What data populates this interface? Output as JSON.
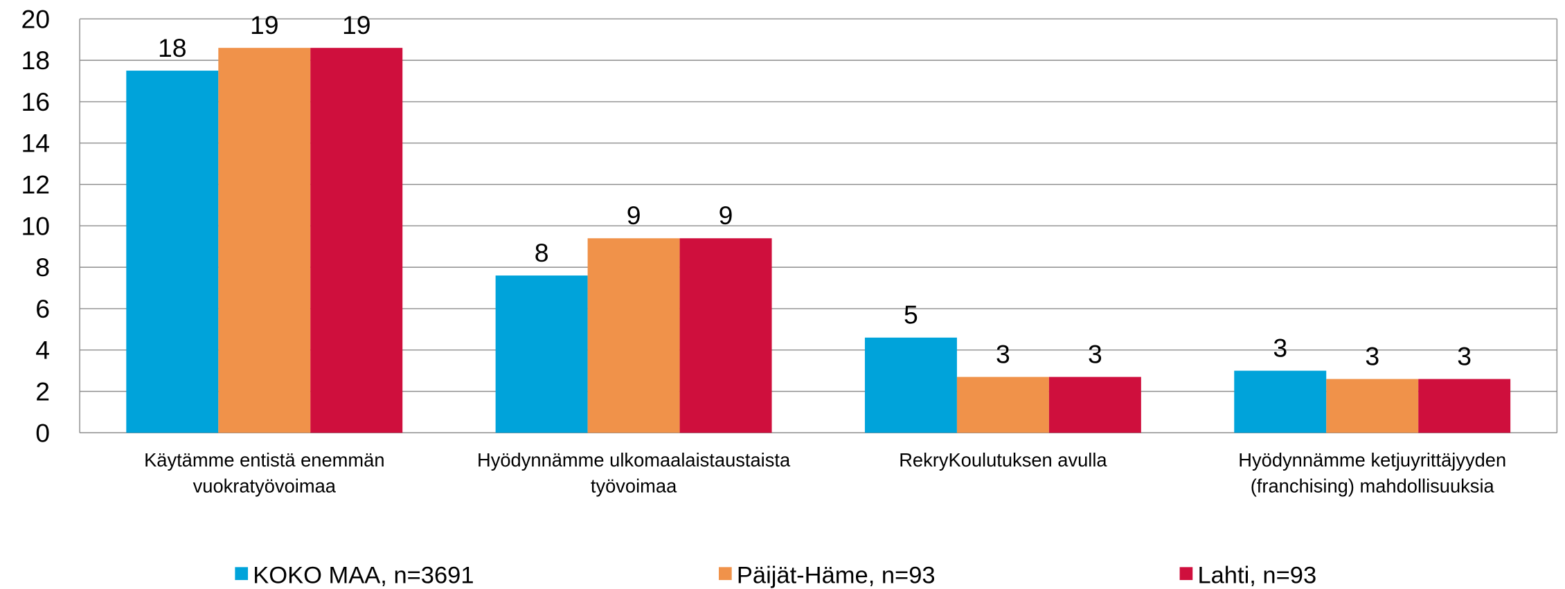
{
  "chart_data": {
    "type": "bar",
    "categories": [
      "Käytämme entistä enemmän\nvuokratyövoimaa",
      "Hyödynnämme ulkomaalaistaustaista\ntyövoimaa",
      "RekryKoulutuksen avulla",
      "Hyödynnämme ketjuyrittäjyyden\n(franchising) mahdollisuuksia"
    ],
    "series": [
      {
        "name": "KOKO MAA, n=3691",
        "color": "#00a3da",
        "values": [
          17.5,
          7.6,
          4.6,
          3.0
        ],
        "value_labels": [
          "18",
          "8",
          "5",
          "3"
        ]
      },
      {
        "name": "Päijät-Häme, n=93",
        "color": "#f0924a",
        "values": [
          18.6,
          9.4,
          2.7,
          2.6
        ],
        "value_labels": [
          "19",
          "9",
          "3",
          "3"
        ]
      },
      {
        "name": "Lahti, n=93",
        "color": "#cf0f3d",
        "values": [
          18.6,
          9.4,
          2.7,
          2.6
        ],
        "value_labels": [
          "19",
          "9",
          "3",
          "3"
        ]
      }
    ],
    "ylim": [
      0,
      20
    ],
    "yticks": [
      0,
      2,
      4,
      6,
      8,
      10,
      12,
      14,
      16,
      18,
      20
    ],
    "grid": true,
    "legend": "bottom"
  }
}
